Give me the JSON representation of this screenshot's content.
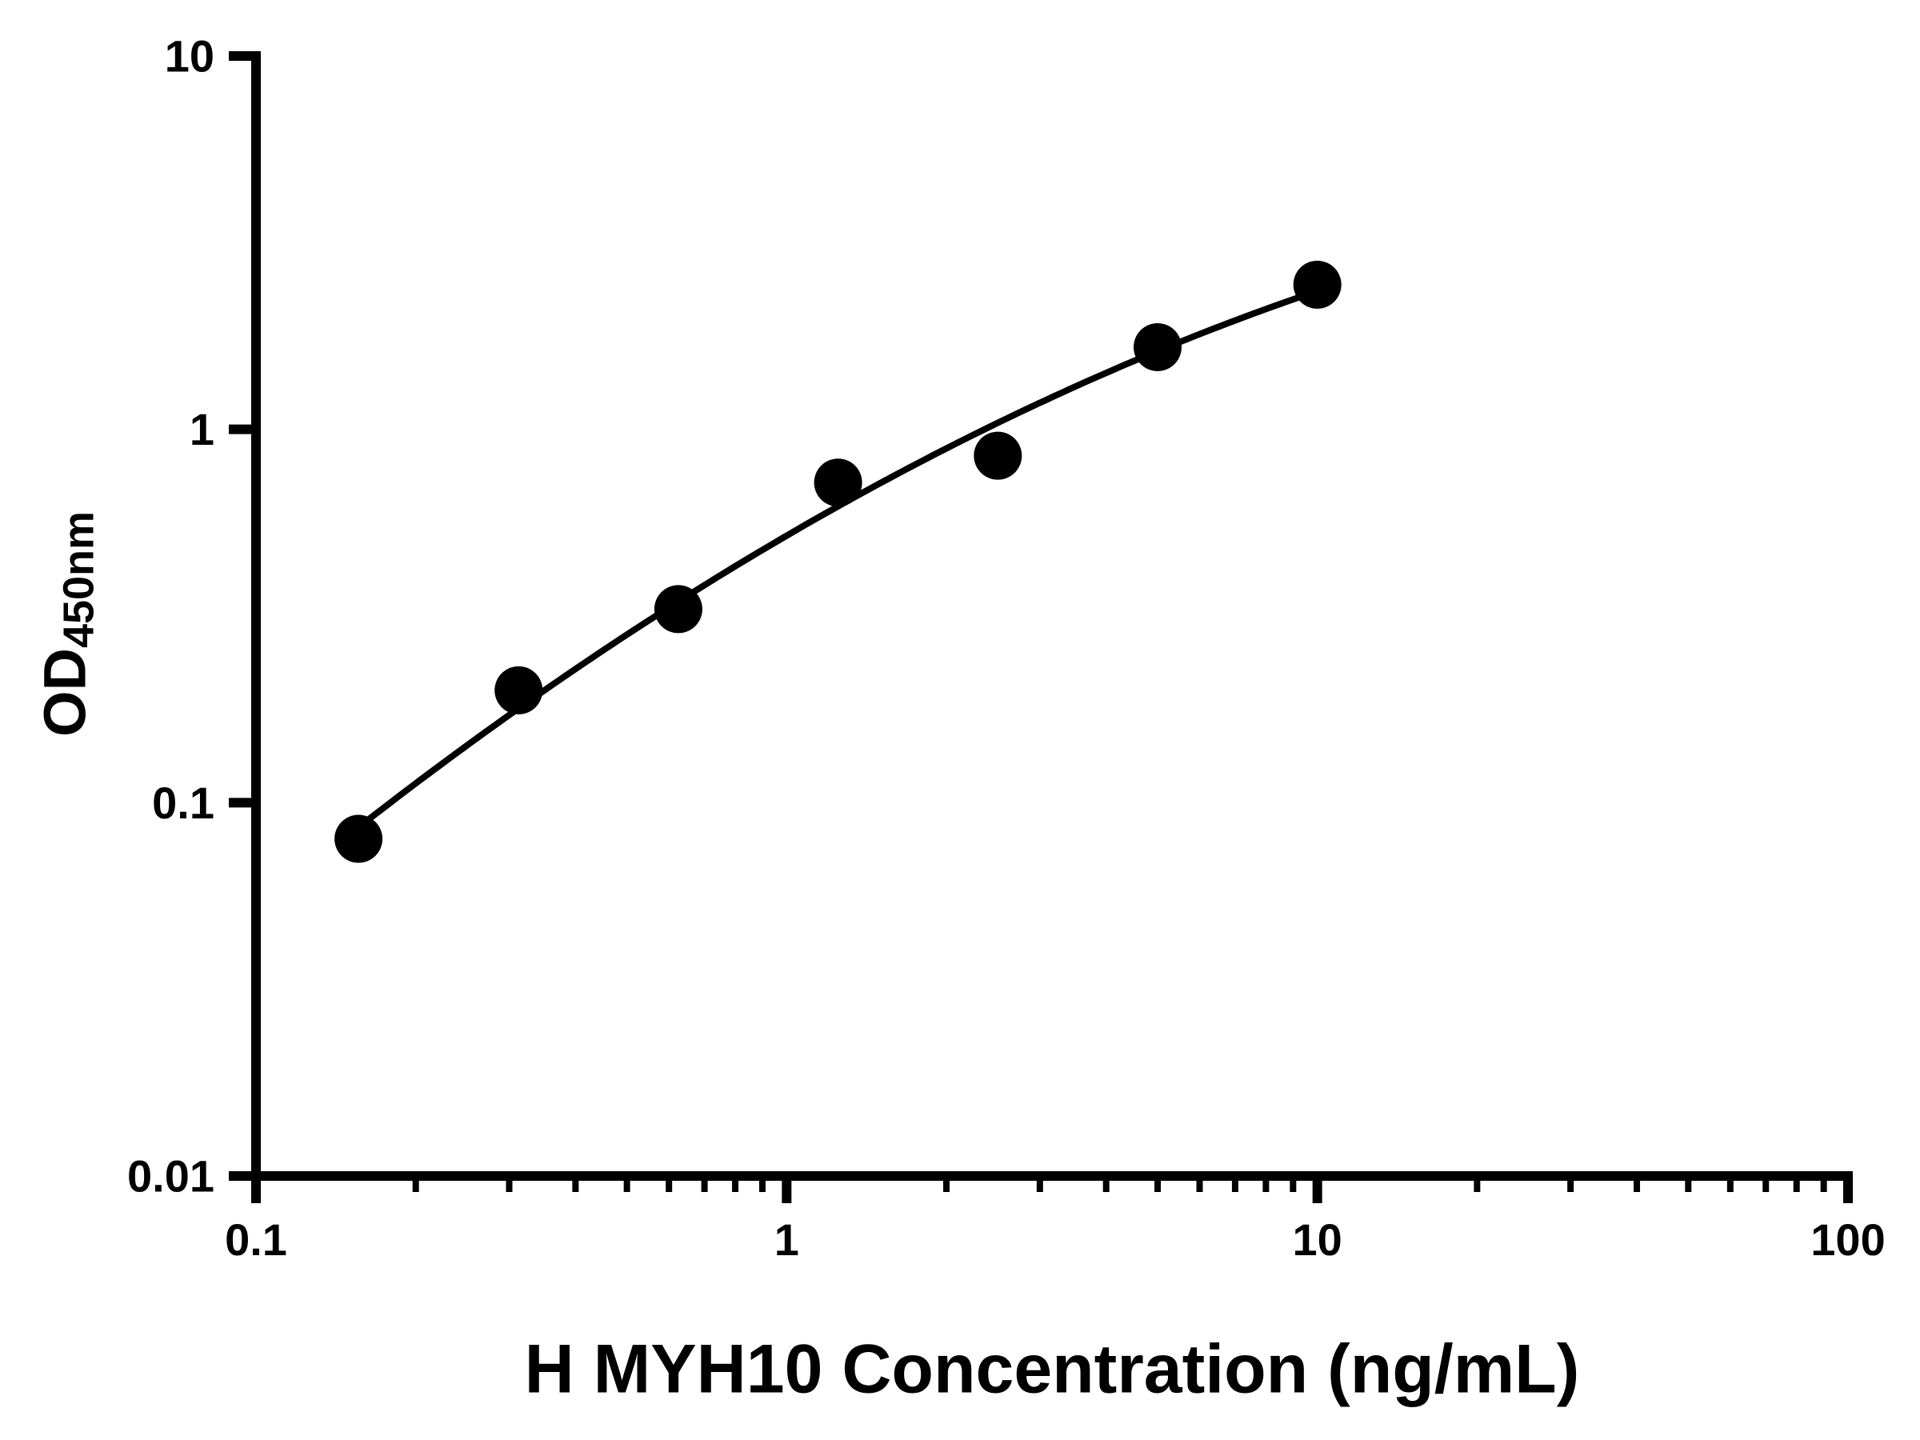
{
  "chart_data": {
    "type": "scatter",
    "title": "",
    "xlabel": "H MYH10 Concentration (ng/mL)",
    "ylabel_main": "OD",
    "ylabel_sub": "450nm",
    "xscale": "log",
    "yscale": "log",
    "xlim": [
      0.1,
      100
    ],
    "ylim": [
      0.01,
      10
    ],
    "x": [
      0.156,
      0.3125,
      0.625,
      1.25,
      2.5,
      5,
      10
    ],
    "y": [
      0.08,
      0.2,
      0.33,
      0.72,
      0.85,
      1.66,
      2.44
    ],
    "fit": "quadratic in log-log space (smooth standard curve)",
    "x_ticks": [
      {
        "value": 0.1,
        "label": "0.1"
      },
      {
        "value": 1,
        "label": "1"
      },
      {
        "value": 10,
        "label": "10"
      },
      {
        "value": 100,
        "label": "100"
      }
    ],
    "y_ticks": [
      {
        "value": 0.01,
        "label": "0.01"
      },
      {
        "value": 0.1,
        "label": "0.1"
      },
      {
        "value": 1,
        "label": "1"
      },
      {
        "value": 10,
        "label": "10"
      }
    ],
    "minor_ticks_x": true,
    "minor_ticks_y": false,
    "grid": false,
    "legend": null,
    "colors": {
      "background": "#ffffff",
      "axis": "#000000",
      "marker": "#000000",
      "curve": "#000000",
      "text": "#000000"
    }
  }
}
